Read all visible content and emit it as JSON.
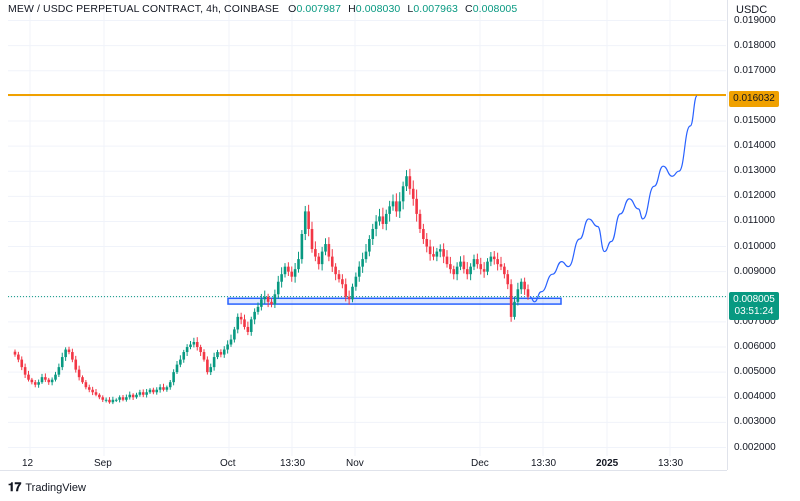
{
  "header": {
    "symbol": "MEW / USDC PERPETUAL CONTRACT, 4h, COINBASE",
    "o_label": "O",
    "o_value": "0.007987",
    "h_label": "H",
    "h_value": "0.008030",
    "l_label": "L",
    "l_value": "0.007963",
    "c_label": "C",
    "c_value": "0.008005"
  },
  "currency": "USDC",
  "price_axis": [
    "0.019000",
    "0.018000",
    "0.017000",
    "0.015000",
    "0.014000",
    "0.013000",
    "0.012000",
    "0.011000",
    "0.010000",
    "0.009000",
    "0.007000",
    "0.006000",
    "0.005000",
    "0.004000",
    "0.003000",
    "0.002000"
  ],
  "price_badges": {
    "target": "0.016032",
    "current": "0.008005",
    "countdown": "03:51:24"
  },
  "time_axis": [
    "12",
    "Sep",
    "Oct",
    "13:30",
    "Nov",
    "Dec",
    "13:30",
    "2025",
    "13:30"
  ],
  "brand": "TradingView",
  "colors": {
    "up": "#089981",
    "down": "#f23645",
    "target_line": "#f0a100",
    "support_zone": "#2962ff",
    "projection": "#2962ff",
    "current_price": "#089981"
  },
  "chart_data": {
    "type": "candlestick",
    "title": "MEW / USDC PERPETUAL CONTRACT, 4h, COINBASE",
    "ylim": [
      0.0017,
      0.0195
    ],
    "target_level": 0.016032,
    "current_price": 0.008005,
    "support_zone": [
      0.00775,
      0.0079
    ],
    "closes": [
      0.0057,
      0.0055,
      0.0052,
      0.0049,
      0.0047,
      0.0046,
      0.0045,
      0.0046,
      0.0048,
      0.0047,
      0.0046,
      0.0047,
      0.0049,
      0.0052,
      0.0056,
      0.0059,
      0.0058,
      0.0055,
      0.0051,
      0.0048,
      0.0046,
      0.0044,
      0.0043,
      0.0042,
      0.0041,
      0.004,
      0.0039,
      0.0039,
      0.0038,
      0.0039,
      0.0039,
      0.004,
      0.0039,
      0.004,
      0.0041,
      0.004,
      0.0041,
      0.0042,
      0.0041,
      0.0042,
      0.0043,
      0.0042,
      0.0043,
      0.0044,
      0.0043,
      0.0044,
      0.0046,
      0.005,
      0.0053,
      0.0055,
      0.0058,
      0.006,
      0.0061,
      0.0062,
      0.006,
      0.0058,
      0.0055,
      0.005,
      0.0052,
      0.0056,
      0.0058,
      0.0057,
      0.0059,
      0.0061,
      0.0063,
      0.0067,
      0.0072,
      0.0071,
      0.0068,
      0.0066,
      0.0071,
      0.0074,
      0.0076,
      0.0079,
      0.008,
      0.0078,
      0.0077,
      0.0081,
      0.0086,
      0.0089,
      0.0092,
      0.009,
      0.0088,
      0.0091,
      0.0095,
      0.0105,
      0.0114,
      0.0107,
      0.0099,
      0.0096,
      0.0093,
      0.0098,
      0.0101,
      0.0096,
      0.0092,
      0.0089,
      0.0087,
      0.0085,
      0.008,
      0.0079,
      0.0084,
      0.0088,
      0.0092,
      0.0095,
      0.0098,
      0.0103,
      0.0107,
      0.011,
      0.0112,
      0.0109,
      0.0113,
      0.0116,
      0.0118,
      0.0114,
      0.0118,
      0.0124,
      0.0128,
      0.0123,
      0.0119,
      0.0113,
      0.0107,
      0.0103,
      0.01,
      0.0097,
      0.0096,
      0.0098,
      0.0099,
      0.0096,
      0.0093,
      0.0091,
      0.0089,
      0.0092,
      0.0094,
      0.0091,
      0.0089,
      0.0092,
      0.0095,
      0.0093,
      0.0091,
      0.009,
      0.0094,
      0.0096,
      0.0095,
      0.0093,
      0.0092,
      0.0089,
      0.0085,
      0.0072,
      0.0078,
      0.0083,
      0.0086,
      0.0083,
      0.008
    ],
    "projection": [
      [
        0.008005,
        0
      ],
      [
        0.0078,
        2
      ],
      [
        0.0082,
        5
      ],
      [
        0.0089,
        10
      ],
      [
        0.0094,
        14
      ],
      [
        0.0092,
        17
      ],
      [
        0.0103,
        22
      ],
      [
        0.0111,
        26
      ],
      [
        0.0108,
        30
      ],
      [
        0.0098,
        33
      ],
      [
        0.0102,
        36
      ],
      [
        0.0113,
        40
      ],
      [
        0.0119,
        44
      ],
      [
        0.0115,
        48
      ],
      [
        0.0111,
        50
      ],
      [
        0.0124,
        55
      ],
      [
        0.0132,
        59
      ],
      [
        0.0128,
        63
      ],
      [
        0.013,
        66
      ],
      [
        0.0148,
        71
      ],
      [
        0.016,
        74
      ]
    ],
    "x_ticks": [
      "12",
      "Sep",
      "Oct",
      "13:30",
      "Nov",
      "Dec",
      "13:30",
      "2025",
      "13:30"
    ]
  }
}
